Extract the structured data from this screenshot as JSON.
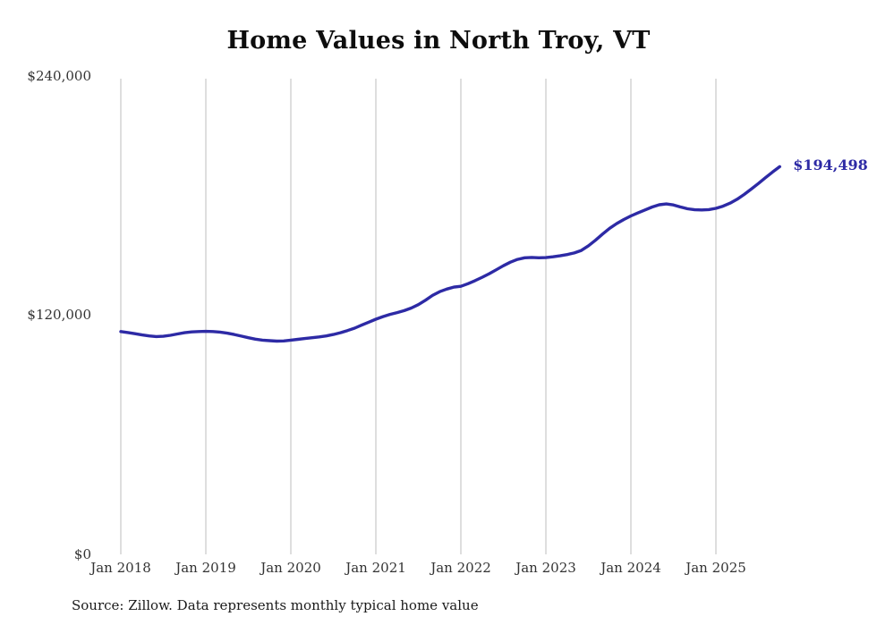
{
  "chart_data": {
    "type": "line",
    "title": "Home Values in North Troy, VT",
    "source": "Source: Zillow. Data represents monthly typical home value",
    "end_label": "$194,498",
    "end_value": 194498,
    "y_max": 240000,
    "y_min": 0,
    "y_tick_labels": [
      "$240,000",
      "$120,000",
      "$0"
    ],
    "x_tick_labels": [
      "Jan 2018",
      "Jan 2019",
      "Jan 2020",
      "Jan 2021",
      "Jan 2022",
      "Jan 2023",
      "Jan 2024",
      "Jan 2025"
    ],
    "x_start_month": "Jan 2018",
    "x_end_month": "Oct 2025",
    "grid": "vertical-only",
    "legend": "none",
    "series_name": "Typical home value (monthly)",
    "values": [
      111800,
      111300,
      110700,
      110100,
      109600,
      109300,
      109400,
      109900,
      110600,
      111200,
      111600,
      111800,
      111900,
      111800,
      111500,
      111000,
      110300,
      109500,
      108700,
      108000,
      107500,
      107200,
      107000,
      107100,
      107500,
      107900,
      108300,
      108700,
      109100,
      109600,
      110300,
      111200,
      112300,
      113500,
      115000,
      116500,
      118000,
      119300,
      120400,
      121300,
      122300,
      123600,
      125300,
      127500,
      129900,
      131800,
      133100,
      134100,
      134500,
      135800,
      137300,
      139000,
      140800,
      142800,
      144800,
      146600,
      148000,
      148800,
      149000,
      148800,
      148900,
      149300,
      149800,
      150400,
      151200,
      152500,
      154800,
      157600,
      160700,
      163600,
      166000,
      168000,
      169800,
      171300,
      172800,
      174300,
      175400,
      175800,
      175300,
      174300,
      173400,
      172900,
      172800,
      173000,
      173600,
      174700,
      176200,
      178200,
      180600,
      183300,
      186100,
      189000,
      191800,
      194498
    ],
    "colors": {
      "line": "#2d2aa5",
      "grid": "#c9c9c9",
      "axis_text": "#333333",
      "title_text": "#0d0d0d"
    }
  }
}
